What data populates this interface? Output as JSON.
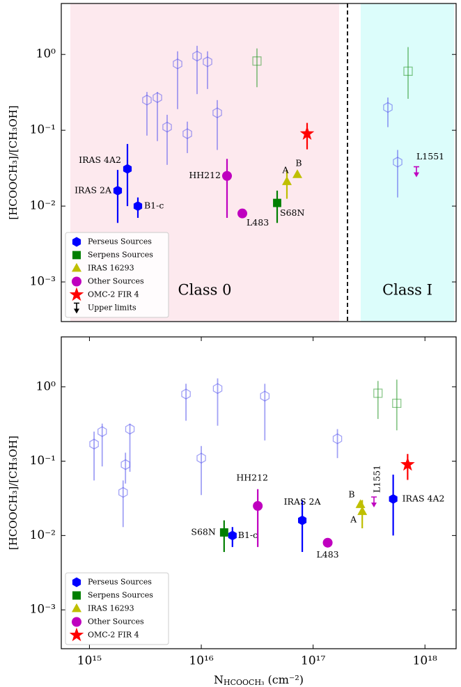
{
  "chart_data": [
    {
      "type": "scatter",
      "ylabel": "[HCOOCH₃]/[CH₃OH]",
      "ylog": true,
      "ylim": [
        0.0003,
        4.7
      ],
      "yticks": [
        {
          "value": 0.001,
          "label": "10⁻³"
        },
        {
          "value": 0.01,
          "label": "10⁻²"
        },
        {
          "value": 0.1,
          "label": "10⁻¹"
        },
        {
          "value": 1,
          "label": "10⁰"
        }
      ],
      "legend": "lower left",
      "regions": [
        {
          "label": "Class 0",
          "color": "#fde9ee"
        },
        {
          "label": "Class I",
          "color": "#dcfdfb"
        }
      ],
      "series": [
        {
          "name": "Perseus Sources",
          "color": "#0000ff",
          "marker": "hexagon",
          "filled": true,
          "values": [
            0.016,
            0.031,
            0.01
          ],
          "ylow": [
            0.006,
            0.01,
            0.007
          ],
          "yhigh": [
            0.03,
            0.066,
            0.013
          ],
          "labels": [
            "IRAS 2A",
            "IRAS 4A2",
            "B1-c"
          ]
        },
        {
          "name": "Serpens Sources",
          "color": "#007f00",
          "marker": "square",
          "filled": true,
          "values": [
            0.011
          ],
          "ylow": [
            0.006
          ],
          "yhigh": [
            0.016
          ],
          "labels": [
            "S68N"
          ]
        },
        {
          "name": "IRAS 16293",
          "color": "#bfbf00",
          "marker": "triangle",
          "filled": true,
          "values": [
            0.021,
            0.026
          ],
          "ylow": [
            0.0125,
            null
          ],
          "yhigh": [
            0.03,
            null
          ],
          "labels": [
            "A",
            "B"
          ]
        },
        {
          "name": "Other Sources",
          "color": "#bf00bf",
          "marker": "circle",
          "filled": true,
          "values": [
            0.025,
            0.008
          ],
          "ylow": [
            0.007,
            null
          ],
          "yhigh": [
            0.042,
            null
          ],
          "labels": [
            "HH212",
            "L483"
          ]
        },
        {
          "name": "OMC-2 FIR 4",
          "color": "#ff0000",
          "marker": "star",
          "filled": true,
          "values": [
            0.09
          ],
          "ylow": [
            0.056
          ],
          "yhigh": [
            0.125
          ]
        },
        {
          "name": "Upper limits",
          "color": "#bf00bf",
          "legend_color": "#000000",
          "marker": "arrow",
          "filled": true,
          "values": [
            0.033
          ],
          "labels": [
            "L1551"
          ]
        },
        {
          "color": "#5555ee",
          "marker": "hexagon",
          "filled": false,
          "alpha": 0.55,
          "values": [
            0.25,
            0.27,
            0.11,
            0.75,
            0.09,
            0.95,
            0.8,
            0.17,
            0.2,
            0.038
          ],
          "ylow": [
            0.085,
            0.072,
            0.035,
            0.19,
            0.05,
            0.3,
            0.35,
            0.055,
            0.11,
            0.013
          ],
          "yhigh": [
            0.32,
            0.32,
            0.16,
            1.1,
            0.13,
            1.3,
            1.1,
            0.25,
            0.27,
            0.055
          ]
        },
        {
          "color": "#2e9a2e",
          "marker": "square",
          "filled": false,
          "alpha": 0.55,
          "values": [
            0.82,
            0.6
          ],
          "ylow": [
            0.37,
            0.26
          ],
          "yhigh": [
            1.2,
            1.25
          ]
        }
      ]
    },
    {
      "type": "scatter",
      "ylabel": "[HCOOCH₃]/[CH₃OH]",
      "ylog": true,
      "ylim": [
        0.0003,
        4.7
      ],
      "yticks": [
        {
          "value": 0.001,
          "label": "10⁻³"
        },
        {
          "value": 0.01,
          "label": "10⁻²"
        },
        {
          "value": 0.1,
          "label": "10⁻¹"
        },
        {
          "value": 1,
          "label": "10⁰"
        }
      ],
      "xlabel": [
        "N",
        "HCOOCH₃",
        " (cm⁻²)"
      ],
      "xlog": true,
      "xlim": [
        560000000000000.0,
        1.9e+18
      ],
      "xticks": [
        {
          "value": 1000000000000000.0,
          "label": "10¹⁵"
        },
        {
          "value": 1e+16,
          "label": "10¹⁶"
        },
        {
          "value": 1e+17,
          "label": "10¹⁷"
        },
        {
          "value": 1e+18,
          "label": "10¹⁸"
        }
      ],
      "legend": "lower left",
      "series": [
        {
          "name": "Perseus Sources",
          "color": "#0000ff",
          "marker": "hexagon",
          "filled": true,
          "x": [
            8e+16,
            5.2e+17,
            1.9e+16
          ],
          "values": [
            0.016,
            0.031,
            0.01
          ],
          "ylow": [
            0.006,
            0.01,
            0.007
          ],
          "yhigh": [
            0.03,
            0.066,
            0.013
          ],
          "labels": [
            "IRAS 2A",
            "IRAS 4A2",
            "B1-c"
          ]
        },
        {
          "name": "Serpens Sources",
          "color": "#007f00",
          "marker": "square",
          "filled": true,
          "x": [
            1.6e+16
          ],
          "values": [
            0.011
          ],
          "ylow": [
            0.006
          ],
          "yhigh": [
            0.016
          ],
          "labels": [
            "S68N"
          ]
        },
        {
          "name": "IRAS 16293",
          "color": "#bfbf00",
          "marker": "triangle",
          "filled": true,
          "x": [
            2.75e+17,
            2.65e+17
          ],
          "values": [
            0.021,
            0.026
          ],
          "ylow": [
            0.0125,
            null
          ],
          "yhigh": [
            0.03,
            null
          ],
          "labels": [
            "A",
            "B"
          ]
        },
        {
          "name": "Other Sources",
          "color": "#bf00bf",
          "marker": "circle",
          "filled": true,
          "x": [
            3.2e+16,
            1.35e+17
          ],
          "values": [
            0.025,
            0.008
          ],
          "ylow": [
            0.007,
            null
          ],
          "yhigh": [
            0.042,
            null
          ],
          "labels": [
            "HH212",
            "L483"
          ]
        },
        {
          "name": "OMC-2 FIR 4",
          "color": "#ff0000",
          "marker": "star",
          "filled": true,
          "x": [
            7e+17
          ],
          "values": [
            0.09
          ],
          "ylow": [
            0.056
          ],
          "yhigh": [
            0.125
          ]
        },
        {
          "color": "#bf00bf",
          "marker": "arrow",
          "filled": true,
          "x": [
            3.5e+17
          ],
          "values": [
            0.033
          ],
          "labels": [
            "L1551"
          ]
        },
        {
          "color": "#5555ee",
          "marker": "hexagon",
          "filled": false,
          "alpha": 0.55,
          "x": [
            1300000000000000.0,
            2300000000000000.0,
            1e+16,
            3.7e+16,
            2100000000000000.0,
            1.4e+16,
            7300000000000000.0,
            1100000000000000.0,
            1.65e+17,
            2000000000000000.0
          ],
          "values": [
            0.25,
            0.27,
            0.11,
            0.75,
            0.09,
            0.95,
            0.8,
            0.17,
            0.2,
            0.038
          ],
          "ylow": [
            0.085,
            0.072,
            0.035,
            0.19,
            0.05,
            0.3,
            0.35,
            0.055,
            0.11,
            0.013
          ],
          "yhigh": [
            0.32,
            0.32,
            0.16,
            1.1,
            0.13,
            1.3,
            1.1,
            0.25,
            0.27,
            0.055
          ]
        },
        {
          "color": "#2e9a2e",
          "marker": "square",
          "filled": false,
          "alpha": 0.55,
          "x": [
            3.8e+17,
            5.6e+17
          ],
          "values": [
            0.82,
            0.6
          ],
          "ylow": [
            0.37,
            0.26
          ],
          "yhigh": [
            1.2,
            1.25
          ]
        }
      ]
    }
  ]
}
